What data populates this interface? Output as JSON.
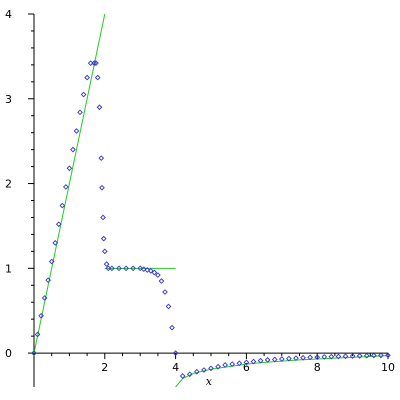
{
  "chart_data": {
    "type": "scatter",
    "xlabel": "x",
    "ylabel": "",
    "xlim": [
      0,
      10
    ],
    "ylim": [
      -0.4,
      4
    ],
    "grid": false,
    "x_ticks": [
      "2",
      "4",
      "6",
      "8",
      "10"
    ],
    "x_tick_values": [
      2,
      4,
      6,
      8,
      10
    ],
    "y_ticks": [
      "0",
      "1",
      "2",
      "3",
      "4"
    ],
    "y_tick_values": [
      0,
      1,
      2,
      3,
      4
    ],
    "colors": {
      "points": "#3333cc",
      "curve": "#22cc22",
      "axis": "#000000"
    },
    "series": [
      {
        "kind": "points",
        "x": [
          0.0,
          0.1,
          0.2,
          0.3,
          0.4,
          0.5,
          0.6,
          0.7,
          0.8,
          0.9,
          1.0,
          1.1,
          1.2,
          1.3,
          1.4,
          1.5,
          1.6,
          1.7,
          1.75,
          1.8,
          1.85,
          1.9,
          1.92,
          1.95,
          1.97,
          2.0,
          2.05,
          2.1,
          2.2,
          2.4,
          2.6,
          2.8,
          3.0,
          3.1,
          3.2,
          3.3,
          3.4,
          3.5,
          3.6,
          3.7,
          3.8,
          3.9,
          4.0,
          4.2,
          4.4,
          4.6,
          4.8,
          5.0,
          5.2,
          5.4,
          5.6,
          5.8,
          6.0,
          6.2,
          6.4,
          6.6,
          6.8,
          7.0,
          7.2,
          7.4,
          7.6,
          7.8,
          8.0,
          8.2,
          8.4,
          8.6,
          8.8,
          9.0,
          9.2,
          9.4,
          9.6,
          9.8,
          10.0
        ],
        "y": [
          0.0,
          0.22,
          0.44,
          0.65,
          0.86,
          1.08,
          1.3,
          1.52,
          1.74,
          1.96,
          2.18,
          2.4,
          2.62,
          2.84,
          3.05,
          3.25,
          3.42,
          3.42,
          3.42,
          3.25,
          2.9,
          2.3,
          1.95,
          1.6,
          1.35,
          1.2,
          1.05,
          1.0,
          1.0,
          1.0,
          1.0,
          1.0,
          1.0,
          0.99,
          0.98,
          0.97,
          0.95,
          0.92,
          0.85,
          0.72,
          0.55,
          0.3,
          0.0,
          -0.27,
          -0.25,
          -0.22,
          -0.2,
          -0.18,
          -0.16,
          -0.14,
          -0.13,
          -0.12,
          -0.11,
          -0.1,
          -0.09,
          -0.08,
          -0.075,
          -0.07,
          -0.065,
          -0.06,
          -0.055,
          -0.05,
          -0.048,
          -0.045,
          -0.042,
          -0.04,
          -0.037,
          -0.035,
          -0.033,
          -0.031,
          -0.029,
          -0.027,
          -0.025
        ]
      },
      {
        "kind": "line",
        "x": [
          0.0,
          2.0
        ],
        "y": [
          0.0,
          4.0
        ]
      },
      {
        "kind": "line",
        "x": [
          2.0,
          4.0
        ],
        "y": [
          1.0,
          1.0
        ]
      },
      {
        "kind": "line",
        "x": [
          4.0,
          4.2,
          4.5,
          5.0,
          5.5,
          6.0,
          6.5,
          7.0,
          7.5,
          8.0,
          8.5,
          9.0,
          9.5,
          10.0
        ],
        "y": [
          -0.4,
          -0.3,
          -0.24,
          -0.19,
          -0.16,
          -0.13,
          -0.11,
          -0.095,
          -0.08,
          -0.07,
          -0.06,
          -0.05,
          -0.04,
          -0.03
        ]
      }
    ]
  }
}
